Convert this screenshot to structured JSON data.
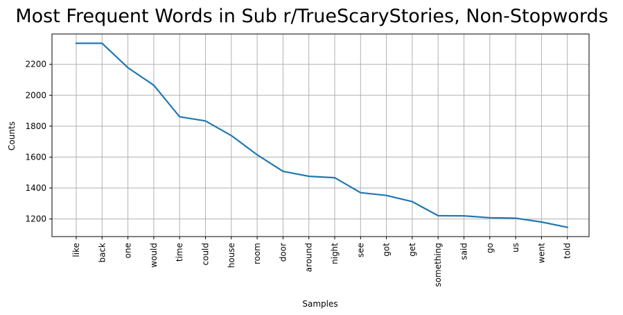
{
  "chart_data": {
    "type": "line",
    "title": "Most Frequent Words in Sub r/TrueScaryStories, Non-Stopwords",
    "xlabel": "Samples",
    "ylabel": "Counts",
    "categories": [
      "like",
      "back",
      "one",
      "would",
      "time",
      "could",
      "house",
      "room",
      "door",
      "around",
      "night",
      "see",
      "got",
      "get",
      "something",
      "said",
      "go",
      "us",
      "went",
      "told"
    ],
    "values": [
      2336,
      2336,
      2178,
      2065,
      1861,
      1834,
      1739,
      1615,
      1508,
      1476,
      1467,
      1370,
      1352,
      1312,
      1221,
      1220,
      1208,
      1205,
      1180,
      1146
    ],
    "yticks": [
      1200,
      1400,
      1600,
      1800,
      2000,
      2200
    ],
    "ylim": [
      1086,
      2396
    ],
    "grid": true,
    "color": "#1f77b4"
  }
}
